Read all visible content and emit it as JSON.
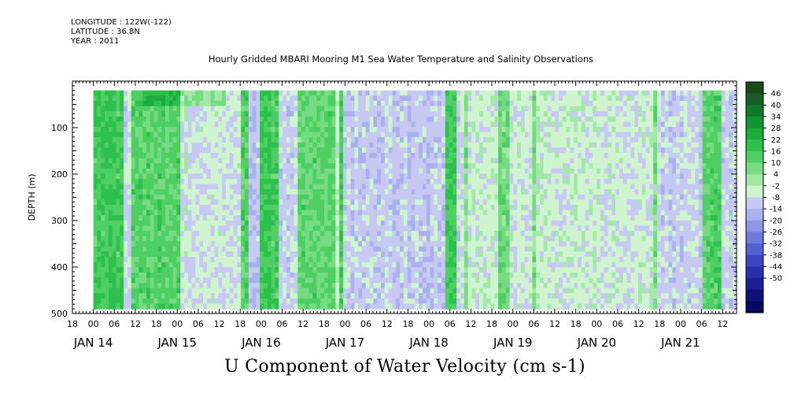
{
  "header": {
    "longitude": "LONGITUDE : 122W(-122)",
    "latitude": "LATITUDE : 36.8N",
    "year": "YEAR : 2011"
  },
  "chart_data": {
    "type": "heatmap",
    "title": "Hourly Gridded MBARI Mooring M1 Sea Water Temperature and Salinity Observations",
    "variable_title": "U Component of Water Velocity (cm s-1)",
    "ylabel": "DEPTH (m)",
    "ylim": [
      500,
      0
    ],
    "y_ticks": [
      100,
      200,
      300,
      400,
      500
    ],
    "hour_tick_labels": [
      "18",
      "00",
      "06",
      "12",
      "18",
      "00",
      "06",
      "12",
      "18",
      "00",
      "06",
      "12",
      "18",
      "00",
      "06",
      "12",
      "18",
      "00",
      "06",
      "12",
      "18",
      "00",
      "06",
      "12",
      "18",
      "00",
      "06",
      "12",
      "18",
      "00",
      "06",
      "12"
    ],
    "day_labels": [
      "JAN 14",
      "JAN 15",
      "JAN 16",
      "JAN 17",
      "JAN 18",
      "JAN 19",
      "JAN 20",
      "JAN 21"
    ],
    "x_range": [
      "2011-01-13 18:00",
      "2011-01-21 16:00"
    ],
    "data_extent": {
      "time": [
        "2011-01-14 00:00",
        "2011-01-21 16:00"
      ],
      "depth": [
        20,
        490
      ]
    },
    "colorbar": {
      "labels": [
        "46",
        "40",
        "34",
        "28",
        "22",
        "16",
        "10",
        "4",
        "-2",
        "-8",
        "-14",
        "-20",
        "-26",
        "-32",
        "-38",
        "-44",
        "-50"
      ],
      "colors": [
        "#1a4a1a",
        "#155e25",
        "#0f7a2c",
        "#129433",
        "#1aac3c",
        "#2dc04c",
        "#4fcf63",
        "#76dc82",
        "#a3e8a7",
        "#d0f3d0",
        "#c6caf3",
        "#aab1ee",
        "#8c95e6",
        "#6f79dd",
        "#545fd3",
        "#3d45c3",
        "#2a2fae",
        "#1b1d94",
        "#10127a",
        "#070960"
      ]
    },
    "dominant_pattern": "alternating vertical bands of weak negative (blue, about -2 to -14) and weak positive (green, about 4 to 22) velocity across all depths"
  }
}
